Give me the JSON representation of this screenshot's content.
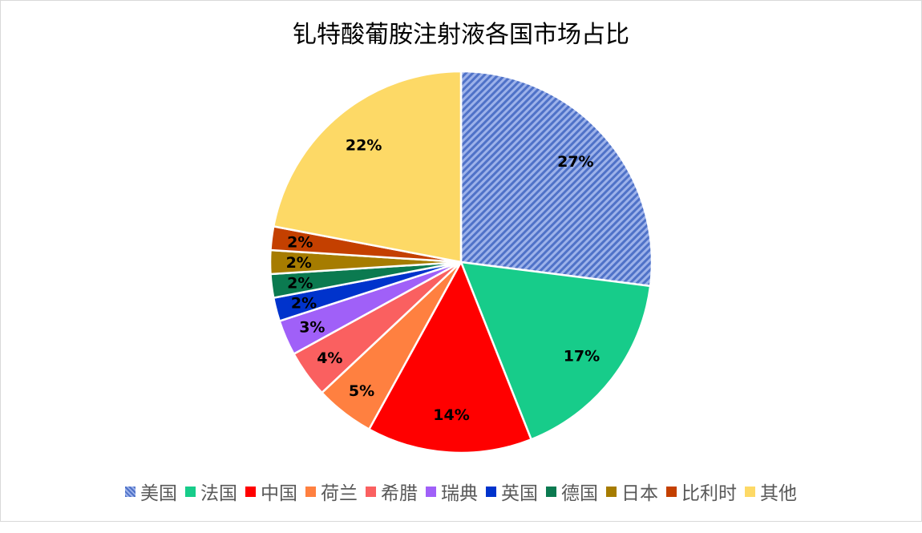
{
  "chart_data": {
    "type": "pie",
    "title": "钆特酸葡胺注射液各国市场占比",
    "categories": [
      "美国",
      "法国",
      "中国",
      "荷兰",
      "希腊",
      "瑞典",
      "英国",
      "德国",
      "日本",
      "比利时",
      "其他"
    ],
    "values": [
      27,
      17,
      14,
      5,
      4,
      3,
      2,
      2,
      2,
      2,
      22
    ],
    "data_labels": [
      "27%",
      "17%",
      "14%",
      "5%",
      "4%",
      "3%",
      "2%",
      "2%",
      "2%",
      "2%",
      "22%"
    ],
    "colors": [
      "#7f9be0",
      "#17cc8a",
      "#ff0000",
      "#ff8040",
      "#fa6060",
      "#a060f8",
      "#0033cc",
      "#0b7a50",
      "#a67c00",
      "#c44000",
      "#fdd966"
    ],
    "patterns": [
      "diagonal-stripes",
      null,
      null,
      null,
      null,
      null,
      null,
      null,
      null,
      null,
      null
    ],
    "start_angle": "top",
    "direction": "clockwise",
    "legend_position": "bottom"
  }
}
